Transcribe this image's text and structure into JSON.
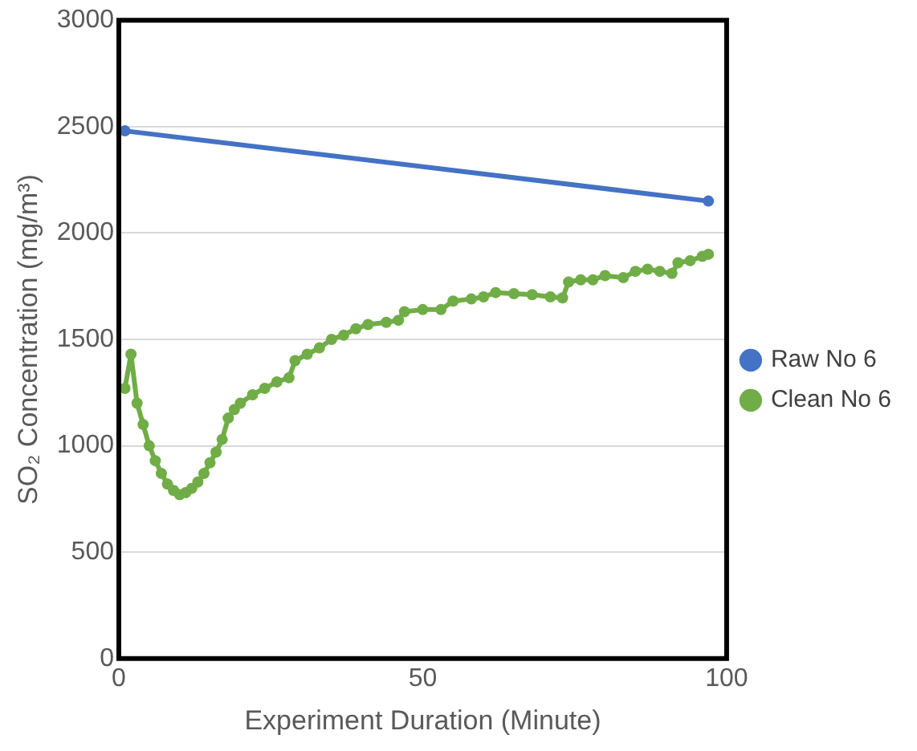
{
  "chart_data": {
    "type": "line",
    "xlabel": "Experiment Duration (Minute)",
    "ylabel": "SO₂ Concentration (mg/m³)",
    "xlim": [
      0,
      100
    ],
    "xticks": [
      0,
      50,
      100
    ],
    "ylim": [
      0,
      3000
    ],
    "yticks": [
      0,
      500,
      1000,
      1500,
      2000,
      2500,
      3000
    ],
    "grid": "y",
    "legend": "right",
    "marker": "circle",
    "line_style": "solid",
    "series": [
      {
        "name": "Raw No 6",
        "color": "#4472c4",
        "x": [
          1,
          97
        ],
        "values": [
          2480,
          2150
        ]
      },
      {
        "name": "Clean No 6",
        "color": "#70ad47",
        "x": [
          1,
          2,
          3,
          4,
          5,
          6,
          7,
          8,
          9,
          10,
          11,
          12,
          13,
          14,
          15,
          16,
          17,
          18,
          19,
          20,
          22,
          24,
          26,
          28,
          29,
          31,
          33,
          35,
          37,
          39,
          41,
          44,
          46,
          47,
          50,
          53,
          55,
          58,
          60,
          62,
          65,
          68,
          71,
          73,
          74,
          76,
          78,
          80,
          83,
          85,
          87,
          89,
          91,
          92,
          94,
          96,
          97
        ],
        "values": [
          1270,
          1430,
          1200,
          1100,
          1000,
          930,
          870,
          820,
          790,
          770,
          780,
          800,
          830,
          870,
          920,
          970,
          1030,
          1130,
          1170,
          1200,
          1240,
          1270,
          1300,
          1320,
          1400,
          1430,
          1460,
          1500,
          1520,
          1550,
          1570,
          1580,
          1590,
          1630,
          1640,
          1640,
          1680,
          1690,
          1700,
          1720,
          1715,
          1710,
          1700,
          1695,
          1770,
          1780,
          1780,
          1800,
          1790,
          1820,
          1830,
          1820,
          1810,
          1860,
          1870,
          1890,
          1900
        ]
      }
    ]
  }
}
